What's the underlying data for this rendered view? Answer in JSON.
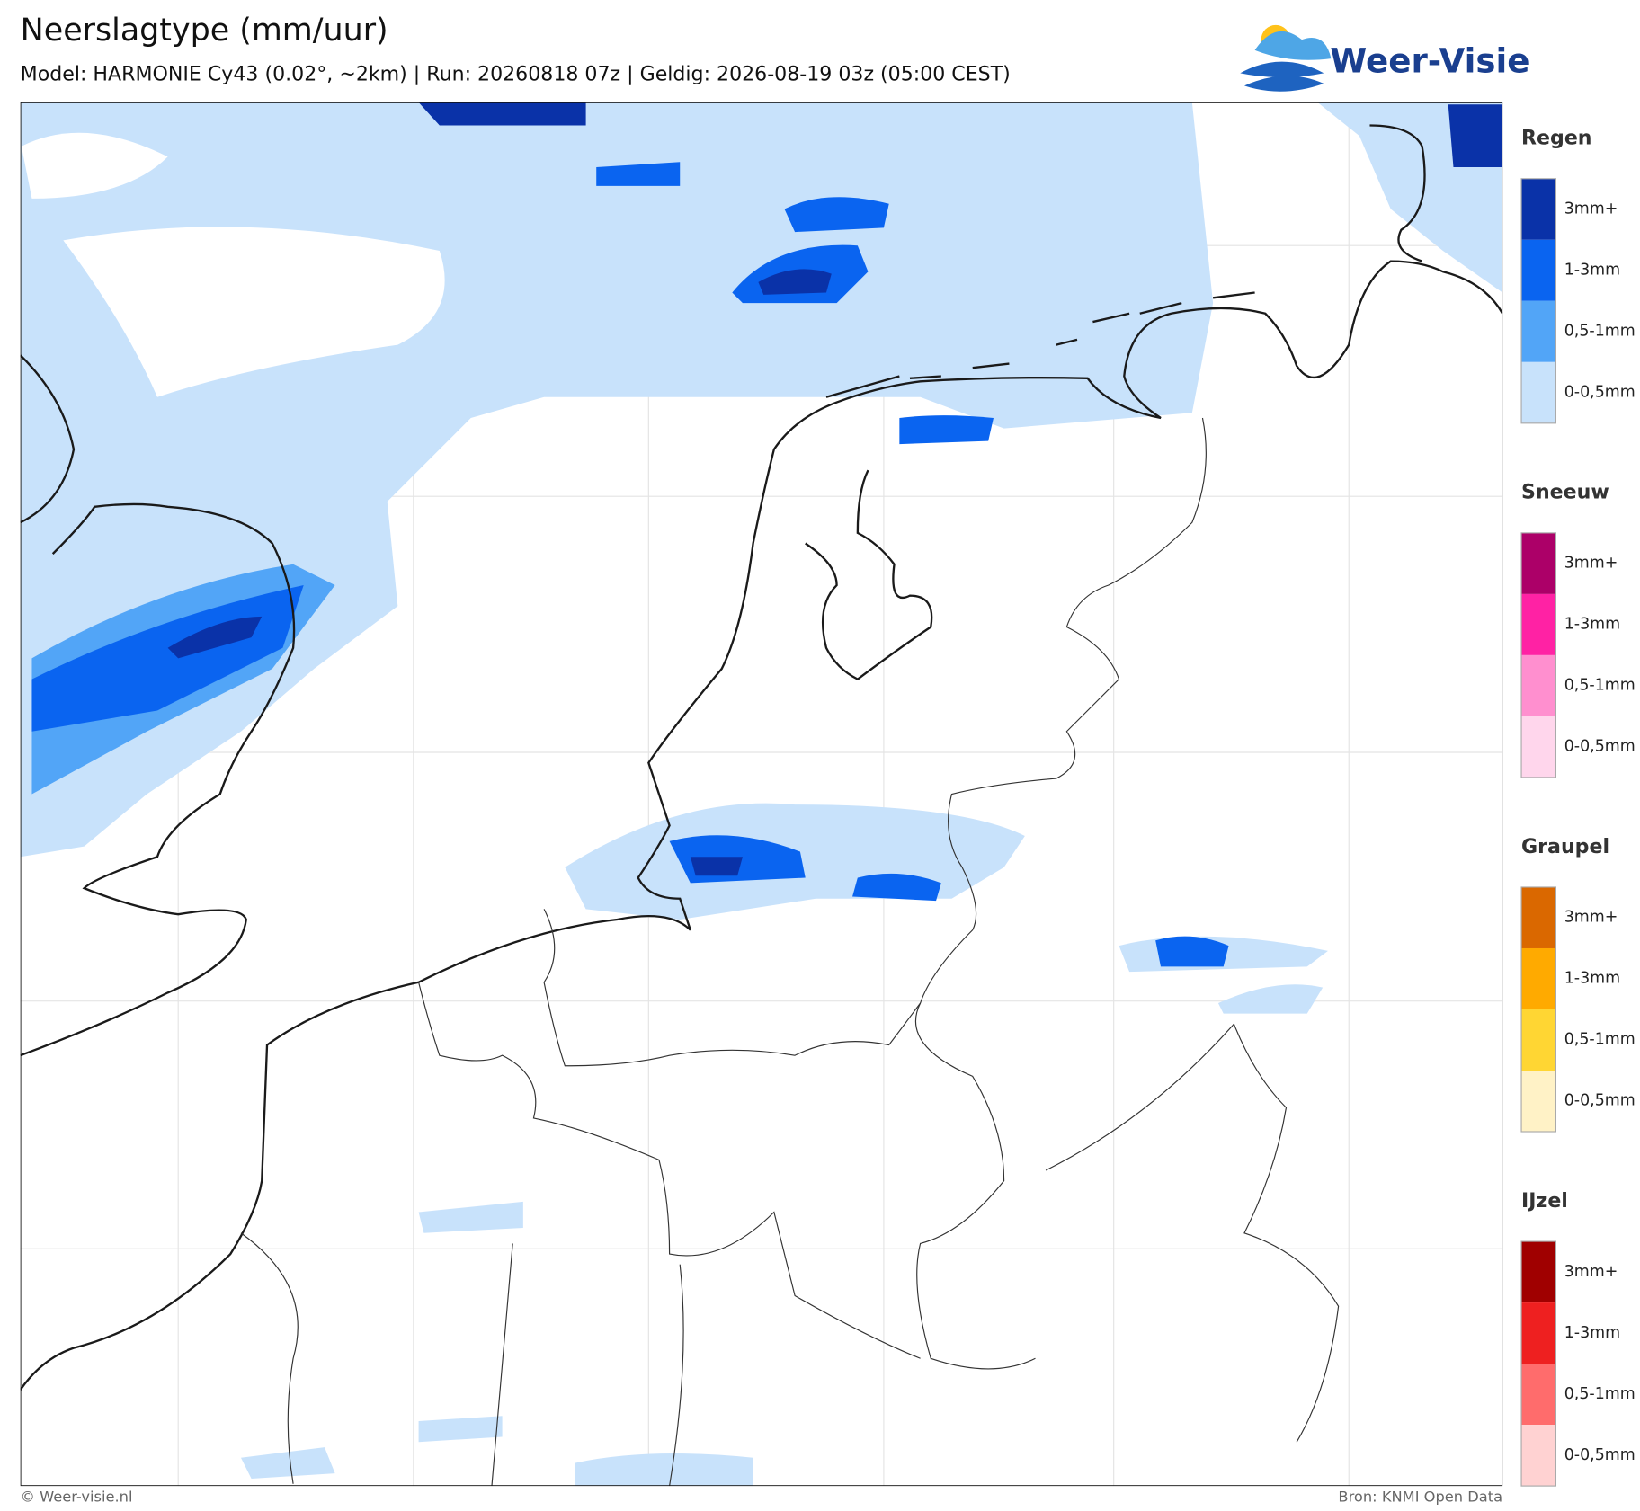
{
  "header": {
    "title": "Neerslagtype (mm/uur)",
    "subtitle": "Model: HARMONIE Cy43 (0.02°, ~2km)  |  Run: 20260818 07z  |  Geldig: 2026-08-19 03z (05:00 CEST)"
  },
  "logo": {
    "text": "Weer-Visie"
  },
  "legend": [
    {
      "title": "Regen",
      "items": [
        {
          "label": "3mm+",
          "color": "#0a32a8"
        },
        {
          "label": "1-3mm",
          "color": "#0a64f0"
        },
        {
          "label": "0,5-1mm",
          "color": "#52a5f7"
        },
        {
          "label": "0-0,5mm",
          "color": "#c8e2fb"
        }
      ]
    },
    {
      "title": "Sneeuw",
      "items": [
        {
          "label": "3mm+",
          "color": "#ac0068"
        },
        {
          "label": "1-3mm",
          "color": "#ff22a4"
        },
        {
          "label": "0,5-1mm",
          "color": "#ff8fcf"
        },
        {
          "label": "0-0,5mm",
          "color": "#ffd6ec"
        }
      ]
    },
    {
      "title": "Graupel",
      "items": [
        {
          "label": "3mm+",
          "color": "#da6800"
        },
        {
          "label": "1-3mm",
          "color": "#ffaa00"
        },
        {
          "label": "0,5-1mm",
          "color": "#ffd633"
        },
        {
          "label": "0-0,5mm",
          "color": "#fff2c6"
        }
      ]
    },
    {
      "title": "IJzel",
      "items": [
        {
          "label": "3mm+",
          "color": "#a00000"
        },
        {
          "label": "1-3mm",
          "color": "#ee2020"
        },
        {
          "label": "0,5-1mm",
          "color": "#ff6c6c"
        },
        {
          "label": "0-0,5mm",
          "color": "#ffd2d2"
        }
      ]
    }
  ],
  "footer": {
    "left": "© Weer-visie.nl",
    "right": "Bron: KNMI Open Data"
  }
}
